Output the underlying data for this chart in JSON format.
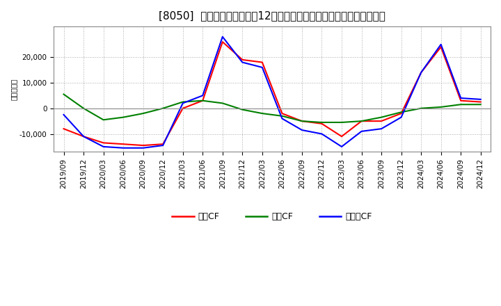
{
  "title": "[8050]  キャッシュフローの12か月移動合計の対前年同期増減額の推移",
  "ylabel": "（百万円）",
  "background_color": "#ffffff",
  "plot_bg_color": "#ffffff",
  "grid_color": "#aaaaaa",
  "x_labels": [
    "2019/09",
    "2019/12",
    "2020/03",
    "2020/06",
    "2020/09",
    "2020/12",
    "2021/03",
    "2021/06",
    "2021/09",
    "2021/12",
    "2022/03",
    "2022/06",
    "2022/09",
    "2022/12",
    "2023/03",
    "2023/06",
    "2023/09",
    "2023/12",
    "2024/03",
    "2024/06",
    "2024/09",
    "2024/12"
  ],
  "series": {
    "営業CF": {
      "color": "#ff0000",
      "values": [
        -8000,
        -11000,
        -13500,
        -14000,
        -14500,
        -14000,
        0,
        3000,
        26000,
        19000,
        18000,
        -2000,
        -5000,
        -6000,
        -11000,
        -5000,
        -5000,
        -2000,
        14000,
        24000,
        3000,
        2500
      ]
    },
    "投資CF": {
      "color": "#008000",
      "values": [
        5500,
        0,
        -4500,
        -3500,
        -2000,
        0,
        2500,
        3000,
        2000,
        -500,
        -2000,
        -3000,
        -5000,
        -5500,
        -5500,
        -5000,
        -3500,
        -1500,
        0,
        500,
        1500,
        1500
      ]
    },
    "フリーCF": {
      "color": "#0000ff",
      "values": [
        -2500,
        -11000,
        -15000,
        -15500,
        -15500,
        -14500,
        2000,
        5000,
        28000,
        18000,
        16000,
        -4000,
        -8500,
        -10000,
        -15000,
        -9000,
        -8000,
        -3500,
        14000,
        25000,
        4000,
        3500
      ]
    }
  },
  "legend_entries": [
    "営業CF",
    "投資CF",
    "フリーCF"
  ],
  "legend_colors": [
    "#ff0000",
    "#008000",
    "#0000ff"
  ],
  "ylim": [
    -17000,
    32000
  ],
  "yticks": [
    -10000,
    0,
    10000,
    20000
  ],
  "title_fontsize": 11,
  "axis_fontsize": 7.5,
  "legend_fontsize": 9
}
